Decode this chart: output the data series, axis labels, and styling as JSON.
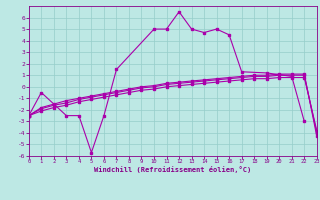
{
  "xlabel": "Windchill (Refroidissement éolien,°C)",
  "background_color": "#bde8e4",
  "grid_color": "#96ceca",
  "line_color": "#aa00aa",
  "xlim": [
    0,
    23
  ],
  "ylim": [
    -6,
    7
  ],
  "xticks": [
    0,
    1,
    2,
    3,
    4,
    5,
    6,
    7,
    8,
    9,
    10,
    11,
    12,
    13,
    14,
    15,
    16,
    17,
    18,
    19,
    20,
    21,
    22,
    23
  ],
  "yticks": [
    -6,
    -5,
    -4,
    -3,
    -2,
    -1,
    0,
    1,
    2,
    3,
    4,
    5,
    6
  ],
  "curve1": {
    "x": [
      0,
      1,
      3,
      4,
      5,
      6,
      7,
      10,
      11,
      12,
      13,
      14,
      15,
      16,
      17,
      19,
      21,
      22
    ],
    "y": [
      -2.5,
      -0.5,
      -2.5,
      -2.5,
      -5.7,
      -2.5,
      1.5,
      5.0,
      5.0,
      6.5,
      5.0,
      4.7,
      5.0,
      4.5,
      1.3,
      1.2,
      0.9,
      -3.0
    ]
  },
  "curve2": {
    "x": [
      0,
      1,
      2,
      3,
      4,
      5,
      6,
      7,
      8,
      9,
      10,
      11,
      12,
      13,
      14,
      15,
      16,
      17,
      18,
      19,
      20,
      21,
      22,
      23
    ],
    "y": [
      -2.5,
      -1.8,
      -1.5,
      -1.2,
      -1.0,
      -0.8,
      -0.6,
      -0.4,
      -0.2,
      0.0,
      0.1,
      0.3,
      0.4,
      0.5,
      0.6,
      0.7,
      0.8,
      0.9,
      1.0,
      1.0,
      1.1,
      1.1,
      1.1,
      -4.3
    ]
  },
  "curve3": {
    "x": [
      0,
      1,
      2,
      3,
      4,
      5,
      6,
      7,
      8,
      9,
      10,
      11,
      12,
      13,
      14,
      15,
      16,
      17,
      18,
      19,
      20,
      21,
      22,
      23
    ],
    "y": [
      -2.5,
      -1.9,
      -1.6,
      -1.4,
      -1.1,
      -0.9,
      -0.7,
      -0.5,
      -0.3,
      -0.1,
      0.0,
      0.2,
      0.3,
      0.4,
      0.5,
      0.6,
      0.7,
      0.8,
      0.9,
      0.9,
      1.0,
      1.0,
      1.0,
      -4.0
    ]
  },
  "curve4": {
    "x": [
      0,
      1,
      2,
      3,
      4,
      5,
      6,
      7,
      8,
      9,
      10,
      11,
      12,
      13,
      14,
      15,
      16,
      17,
      18,
      19,
      20,
      21,
      22,
      23
    ],
    "y": [
      -2.5,
      -2.1,
      -1.8,
      -1.6,
      -1.3,
      -1.1,
      -0.9,
      -0.7,
      -0.5,
      -0.3,
      -0.2,
      0.0,
      0.1,
      0.2,
      0.3,
      0.4,
      0.5,
      0.6,
      0.7,
      0.7,
      0.8,
      0.8,
      0.8,
      -3.8
    ]
  }
}
